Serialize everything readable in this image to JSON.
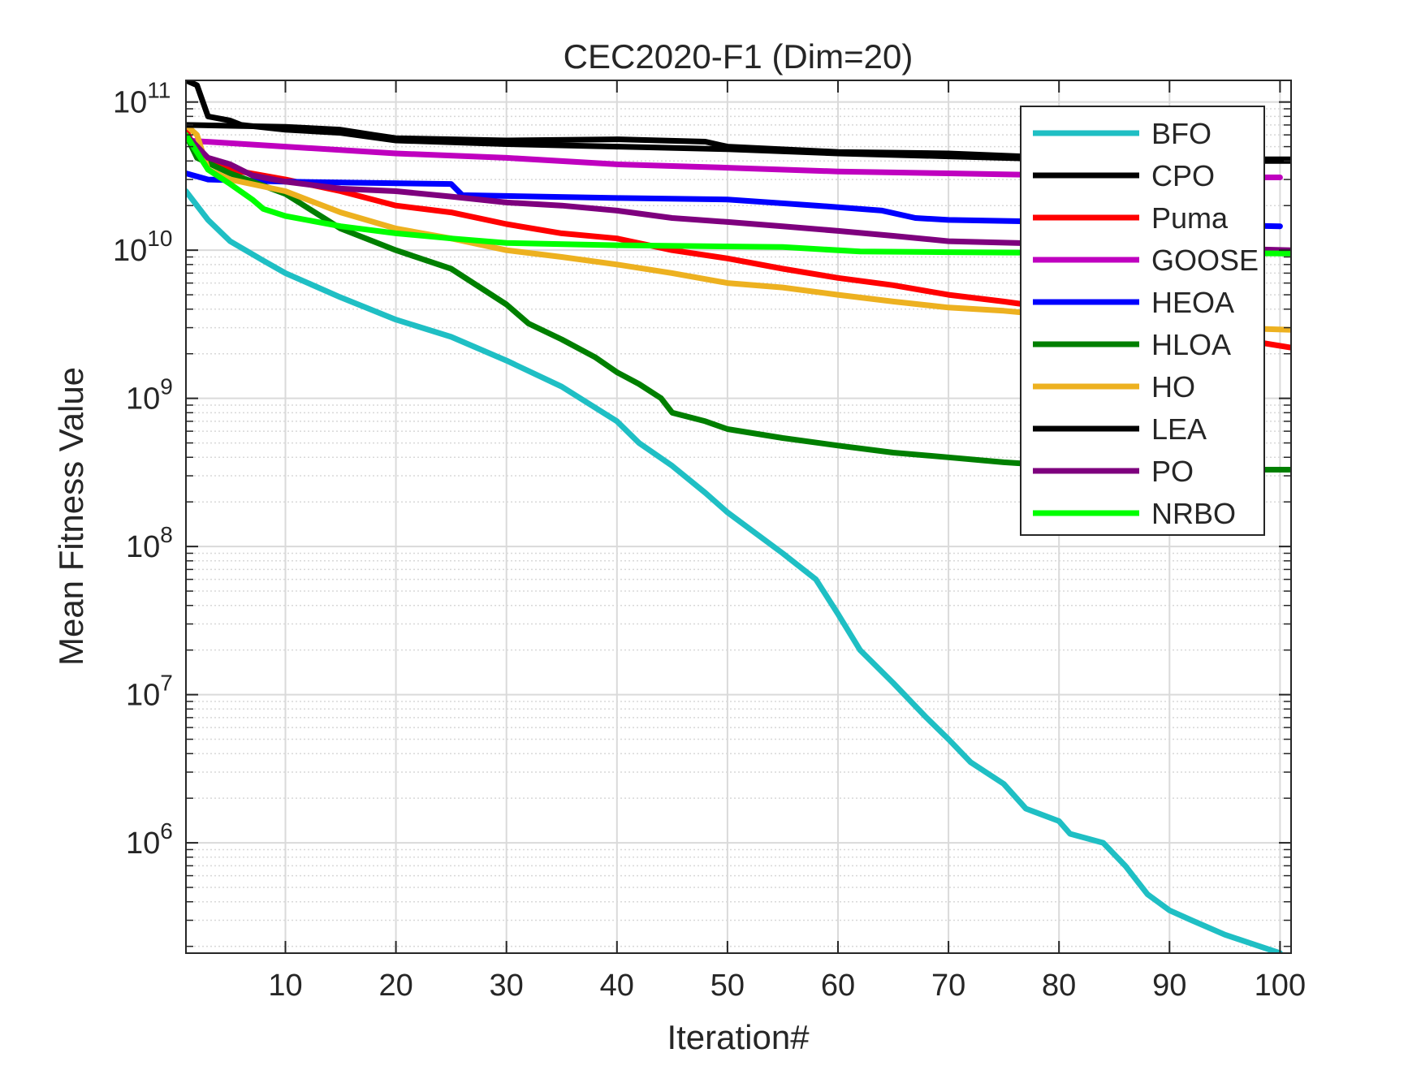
{
  "chart_data": {
    "type": "line",
    "title": "CEC2020-F1 (Dim=20)",
    "xlabel": "Iteration#",
    "ylabel": "Mean Fitness Value",
    "y_scale": "log",
    "xlim": [
      1,
      101
    ],
    "ylim": [
      180000,
      140000000000
    ],
    "x_ticks": [
      10,
      20,
      30,
      40,
      50,
      60,
      70,
      80,
      90,
      100
    ],
    "x_tick_labels": [
      "10",
      "20",
      "30",
      "40",
      "50",
      "60",
      "70",
      "80",
      "90",
      "100"
    ],
    "y_ticks": [
      1000000,
      10000000,
      100000000,
      1000000000,
      10000000000,
      100000000000
    ],
    "y_tick_labels": [
      {
        "base": "10",
        "exp": "6"
      },
      {
        "base": "10",
        "exp": "7"
      },
      {
        "base": "10",
        "exp": "8"
      },
      {
        "base": "10",
        "exp": "9"
      },
      {
        "base": "10",
        "exp": "10"
      },
      {
        "base": "10",
        "exp": "11"
      }
    ],
    "grid": true,
    "minor_grid": true,
    "legend_position": "top-right",
    "series": [
      {
        "name": "BFO",
        "color": "#1FBFC4",
        "points": [
          [
            1,
            25000000000.0
          ],
          [
            3,
            16000000000.0
          ],
          [
            5,
            11500000000.0
          ],
          [
            8,
            8500000000.0
          ],
          [
            10,
            7000000000.0
          ],
          [
            15,
            4800000000.0
          ],
          [
            20,
            3400000000.0
          ],
          [
            25,
            2600000000.0
          ],
          [
            30,
            1800000000.0
          ],
          [
            35,
            1200000000.0
          ],
          [
            40,
            700000000.0
          ],
          [
            42,
            500000000.0
          ],
          [
            45,
            350000000.0
          ],
          [
            48,
            230000000.0
          ],
          [
            50,
            170000000.0
          ],
          [
            55,
            90000000.0
          ],
          [
            58,
            60000000.0
          ],
          [
            60,
            35000000.0
          ],
          [
            62,
            20000000.0
          ],
          [
            65,
            12000000.0
          ],
          [
            68,
            7000000.0
          ],
          [
            70,
            5000000.0
          ],
          [
            72,
            3500000.0
          ],
          [
            75,
            2500000.0
          ],
          [
            77,
            1700000.0
          ],
          [
            80,
            1400000.0
          ],
          [
            81,
            1150000.0
          ],
          [
            84,
            1000000.0
          ],
          [
            86,
            700000.0
          ],
          [
            88,
            450000.0
          ],
          [
            90,
            350000.0
          ],
          [
            92,
            300000.0
          ],
          [
            95,
            240000.0
          ],
          [
            100,
            180000.0
          ]
        ]
      },
      {
        "name": "CPO",
        "color": "#000000",
        "points": [
          [
            1,
            140000000000.0
          ],
          [
            2,
            130000000000.0
          ],
          [
            3,
            80000000000.0
          ],
          [
            5,
            75000000000.0
          ],
          [
            6,
            70000000000.0
          ],
          [
            10,
            65000000000.0
          ],
          [
            15,
            62000000000.0
          ],
          [
            20,
            55000000000.0
          ],
          [
            30,
            52000000000.0
          ],
          [
            40,
            50000000000.0
          ],
          [
            50,
            48000000000.0
          ],
          [
            60,
            45000000000.0
          ],
          [
            70,
            43000000000.0
          ],
          [
            80,
            41000000000.0
          ],
          [
            90,
            40000000000.0
          ],
          [
            101,
            40000000000.0
          ]
        ]
      },
      {
        "name": "Puma",
        "color": "#FF0000",
        "points": [
          [
            1,
            65000000000.0
          ],
          [
            2,
            45000000000.0
          ],
          [
            5,
            35000000000.0
          ],
          [
            10,
            30000000000.0
          ],
          [
            15,
            25000000000.0
          ],
          [
            20,
            20000000000.0
          ],
          [
            25,
            18000000000.0
          ],
          [
            30,
            15000000000.0
          ],
          [
            35,
            13000000000.0
          ],
          [
            40,
            12000000000.0
          ],
          [
            45,
            10000000000.0
          ],
          [
            50,
            8800000000.0
          ],
          [
            55,
            7500000000.0
          ],
          [
            60,
            6500000000.0
          ],
          [
            65,
            5800000000.0
          ],
          [
            70,
            5000000000.0
          ],
          [
            75,
            4500000000.0
          ],
          [
            80,
            4000000000.0
          ],
          [
            85,
            3500000000.0
          ],
          [
            90,
            3000000000.0
          ],
          [
            95,
            2600000000.0
          ],
          [
            101,
            2200000000.0
          ]
        ]
      },
      {
        "name": "GOOSE",
        "color": "#BF00BF",
        "points": [
          [
            1,
            55000000000.0
          ],
          [
            10,
            50000000000.0
          ],
          [
            20,
            45000000000.0
          ],
          [
            30,
            42000000000.0
          ],
          [
            40,
            38000000000.0
          ],
          [
            50,
            36000000000.0
          ],
          [
            60,
            34000000000.0
          ],
          [
            70,
            33000000000.0
          ],
          [
            80,
            32000000000.0
          ],
          [
            90,
            31000000000.0
          ],
          [
            100,
            31000000000.0
          ]
        ]
      },
      {
        "name": "HEOA",
        "color": "#0000FF",
        "points": [
          [
            1,
            33000000000.0
          ],
          [
            3,
            30000000000.0
          ],
          [
            10,
            29000000000.0
          ],
          [
            25,
            28000000000.0
          ],
          [
            26,
            23500000000.0
          ],
          [
            40,
            22500000000.0
          ],
          [
            50,
            22000000000.0
          ],
          [
            58,
            20000000000.0
          ],
          [
            64,
            18500000000.0
          ],
          [
            67,
            16500000000.0
          ],
          [
            70,
            16000000000.0
          ],
          [
            80,
            15500000000.0
          ],
          [
            90,
            15000000000.0
          ],
          [
            100,
            14500000000.0
          ]
        ]
      },
      {
        "name": "HLOA",
        "color": "#007F00",
        "points": [
          [
            1,
            60000000000.0
          ],
          [
            2,
            42000000000.0
          ],
          [
            5,
            33000000000.0
          ],
          [
            10,
            24000000000.0
          ],
          [
            15,
            14000000000.0
          ],
          [
            20,
            10000000000.0
          ],
          [
            25,
            7500000000.0
          ],
          [
            30,
            4300000000.0
          ],
          [
            32,
            3200000000.0
          ],
          [
            35,
            2500000000.0
          ],
          [
            38,
            1900000000.0
          ],
          [
            40,
            1500000000.0
          ],
          [
            42,
            1250000000.0
          ],
          [
            44,
            1000000000.0
          ],
          [
            45,
            800000000.0
          ],
          [
            48,
            700000000.0
          ],
          [
            50,
            620000000.0
          ],
          [
            55,
            540000000.0
          ],
          [
            60,
            480000000.0
          ],
          [
            65,
            430000000.0
          ],
          [
            70,
            400000000.0
          ],
          [
            75,
            370000000.0
          ],
          [
            80,
            350000000.0
          ],
          [
            85,
            340000000.0
          ],
          [
            90,
            330000000.0
          ],
          [
            101,
            330000000.0
          ]
        ]
      },
      {
        "name": "HO",
        "color": "#EDB120",
        "points": [
          [
            1,
            70000000000.0
          ],
          [
            2,
            60000000000.0
          ],
          [
            3,
            35000000000.0
          ],
          [
            5,
            30000000000.0
          ],
          [
            10,
            25000000000.0
          ],
          [
            15,
            18000000000.0
          ],
          [
            20,
            14000000000.0
          ],
          [
            25,
            12000000000.0
          ],
          [
            30,
            10000000000.0
          ],
          [
            35,
            9000000000.0
          ],
          [
            40,
            8000000000.0
          ],
          [
            45,
            7000000000.0
          ],
          [
            50,
            6000000000.0
          ],
          [
            55,
            5600000000.0
          ],
          [
            60,
            5000000000.0
          ],
          [
            65,
            4500000000.0
          ],
          [
            70,
            4100000000.0
          ],
          [
            75,
            3900000000.0
          ],
          [
            80,
            3600000000.0
          ],
          [
            85,
            3300000000.0
          ],
          [
            90,
            3100000000.0
          ],
          [
            95,
            3000000000.0
          ],
          [
            101,
            2900000000.0
          ]
        ]
      },
      {
        "name": "LEA",
        "color": "#000000",
        "points": [
          [
            1,
            70000000000.0
          ],
          [
            10,
            68000000000.0
          ],
          [
            15,
            65000000000.0
          ],
          [
            18,
            60000000000.0
          ],
          [
            20,
            57000000000.0
          ],
          [
            30,
            55000000000.0
          ],
          [
            40,
            56000000000.0
          ],
          [
            48,
            54000000000.0
          ],
          [
            50,
            50000000000.0
          ],
          [
            60,
            46000000000.0
          ],
          [
            70,
            45000000000.0
          ],
          [
            80,
            42000000000.0
          ],
          [
            90,
            41000000000.0
          ],
          [
            101,
            41000000000.0
          ]
        ]
      },
      {
        "name": "PO",
        "color": "#7E007E",
        "points": [
          [
            1,
            60000000000.0
          ],
          [
            3,
            42000000000.0
          ],
          [
            5,
            38000000000.0
          ],
          [
            7,
            32000000000.0
          ],
          [
            10,
            29000000000.0
          ],
          [
            15,
            26000000000.0
          ],
          [
            20,
            25000000000.0
          ],
          [
            25,
            23000000000.0
          ],
          [
            30,
            21000000000.0
          ],
          [
            35,
            20000000000.0
          ],
          [
            40,
            18500000000.0
          ],
          [
            45,
            16500000000.0
          ],
          [
            50,
            15500000000.0
          ],
          [
            55,
            14500000000.0
          ],
          [
            60,
            13500000000.0
          ],
          [
            65,
            12500000000.0
          ],
          [
            70,
            11500000000.0
          ],
          [
            80,
            11000000000.0
          ],
          [
            90,
            10500000000.0
          ],
          [
            101,
            10000000000.0
          ]
        ]
      },
      {
        "name": "NRBO",
        "color": "#00FF00",
        "points": [
          [
            1,
            60000000000.0
          ],
          [
            3,
            35000000000.0
          ],
          [
            5,
            28000000000.0
          ],
          [
            7,
            22000000000.0
          ],
          [
            8,
            19000000000.0
          ],
          [
            10,
            17000000000.0
          ],
          [
            15,
            14500000000.0
          ],
          [
            20,
            13000000000.0
          ],
          [
            25,
            12000000000.0
          ],
          [
            30,
            11200000000.0
          ],
          [
            40,
            10800000000.0
          ],
          [
            55,
            10500000000.0
          ],
          [
            62,
            9800000000.0
          ],
          [
            70,
            9700000000.0
          ],
          [
            80,
            9600000000.0
          ],
          [
            90,
            9600000000.0
          ],
          [
            101,
            9500000000.0
          ]
        ]
      }
    ]
  }
}
